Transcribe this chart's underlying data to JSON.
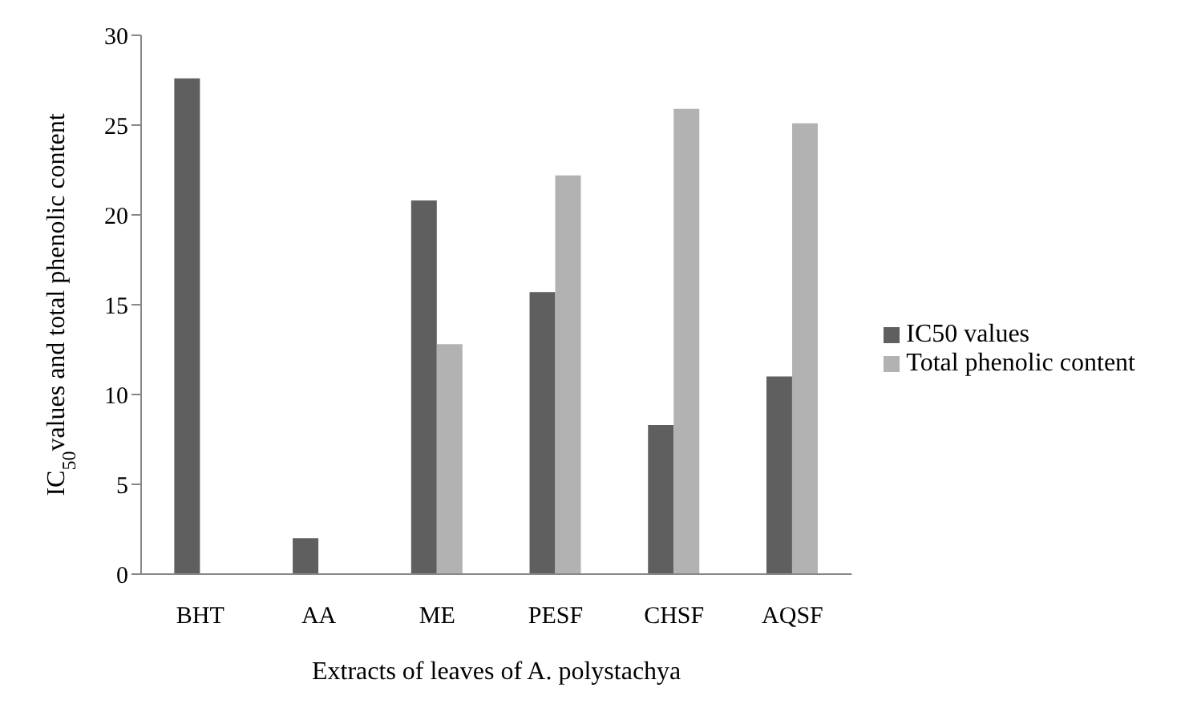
{
  "chart_data": {
    "type": "bar",
    "xlabel": "Extracts of leaves of A. polystachya",
    "ylabel": "IC$_{50}$values and total phenolic content",
    "categories": [
      "BHT",
      "AA",
      "ME",
      "PESF",
      "CHSF",
      "AQSF"
    ],
    "series": [
      {
        "name": "IC50 values",
        "color": "#5f5f5f",
        "values": [
          27.6,
          2.0,
          20.8,
          15.7,
          8.3,
          11.0
        ]
      },
      {
        "name": "Total phenolic content",
        "color": "#b2b2b2",
        "values": [
          null,
          null,
          12.8,
          22.2,
          25.9,
          25.1
        ]
      }
    ],
    "ylim": [
      0,
      30
    ],
    "yticks": [
      0,
      5,
      10,
      15,
      20,
      25,
      30
    ],
    "grid": false,
    "legend": "right"
  }
}
